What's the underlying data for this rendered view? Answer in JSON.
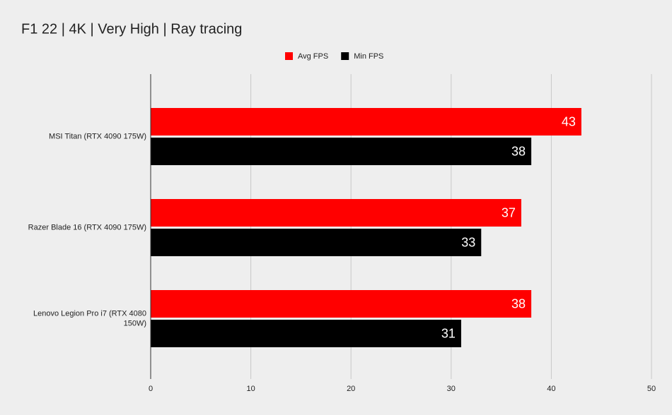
{
  "chart_data": {
    "type": "bar",
    "orientation": "horizontal",
    "title": "F1 22 | 4K | Very High | Ray tracing",
    "categories": [
      "MSI Titan (RTX 4090 175W)",
      "Razer Blade 16 (RTX 4090 175W)",
      "Lenovo Legion Pro i7 (RTX 4080 150W)"
    ],
    "series": [
      {
        "name": "Avg FPS",
        "color": "#ff0000",
        "values": [
          43,
          37,
          38
        ]
      },
      {
        "name": "Min FPS",
        "color": "#000000",
        "values": [
          38,
          33,
          31
        ]
      }
    ],
    "xlim": [
      0,
      50
    ],
    "xticks": [
      0,
      10,
      20,
      30,
      40,
      50
    ],
    "grid": true,
    "legend": "top"
  }
}
